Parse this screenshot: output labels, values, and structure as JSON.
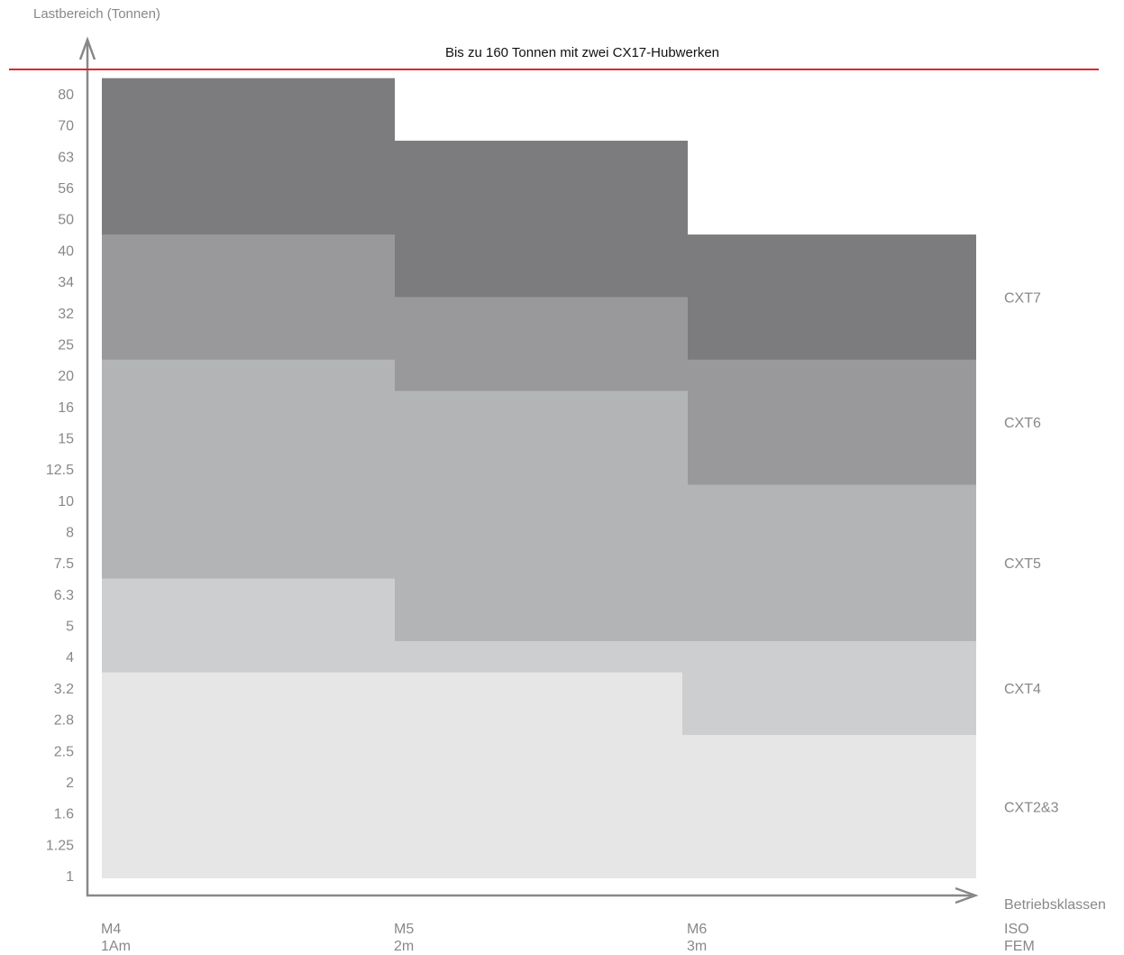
{
  "chart_data": {
    "type": "area",
    "title": "Bis zu 160 Tonnen mit zwei CX17-Hubwerken",
    "ylabel": "Lastbereich (Tonnen)",
    "xlabel": "Betriebsklassen",
    "y_ticks": [
      "80",
      "70",
      "63",
      "56",
      "50",
      "40",
      "34",
      "32",
      "25",
      "20",
      "16",
      "15",
      "12.5",
      "10",
      "8",
      "7.5",
      "6.3",
      "5",
      "4",
      "3.2",
      "2.8",
      "2.5",
      "2",
      "1.6",
      "1.25",
      "1"
    ],
    "x_categories": [
      {
        "iso": "M4",
        "fem": "1Am"
      },
      {
        "iso": "M5",
        "fem": "2m"
      },
      {
        "iso": "M6",
        "fem": "3m"
      }
    ],
    "x_axis_row_labels": {
      "iso": "ISO",
      "fem": "FEM"
    },
    "reference_line": {
      "label": "Bis zu 160 Tonnen mit zwei CX17-Hubwerken",
      "color": "#e3262a"
    },
    "series": [
      {
        "name": "CXT2&3",
        "color": "#e6e6e7",
        "upper": [
          "3.2",
          "3.2",
          "2.5"
        ]
      },
      {
        "name": "CXT4",
        "color": "#cdcecf",
        "upper": [
          "6.3",
          "4",
          "4"
        ]
      },
      {
        "name": "CXT5",
        "color": "#b3b4b5",
        "upper": [
          "20",
          "16",
          "10"
        ]
      },
      {
        "name": "CXT6",
        "color": "#99999b",
        "upper": [
          "40",
          "32",
          "20"
        ]
      },
      {
        "name": "CXT7",
        "color": "#7c7c7e",
        "upper": [
          "80",
          "63",
          "40"
        ]
      }
    ],
    "axis_color": "#888888",
    "label_color": "#888888"
  }
}
